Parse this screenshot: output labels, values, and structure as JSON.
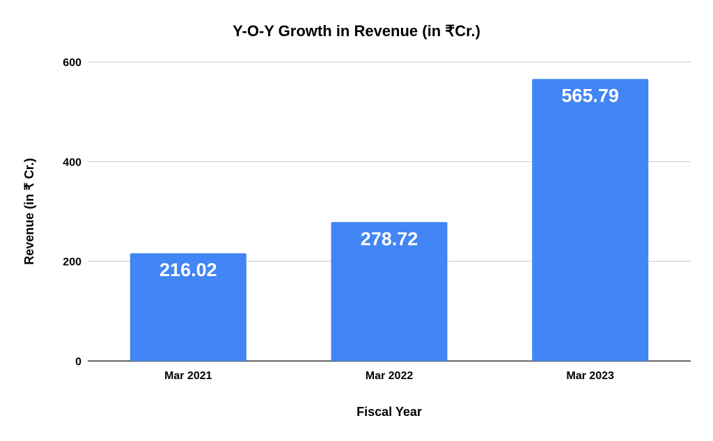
{
  "chart_data": {
    "type": "bar",
    "title": "Y-O-Y Growth in Revenue  (in ₹Cr.)",
    "xlabel": "Fiscal Year",
    "ylabel": "Revenue (in ₹ Cr.)",
    "categories": [
      "Mar 2021",
      "Mar 2022",
      "Mar 2023"
    ],
    "values": [
      216.02,
      278.72,
      565.79
    ],
    "value_labels": [
      "216.02",
      "278.72",
      "565.79"
    ],
    "ylim": [
      0,
      600
    ],
    "yticks": [
      0,
      200,
      400,
      600
    ],
    "ytick_labels": [
      "0",
      "200",
      "400",
      "600"
    ],
    "grid": true,
    "legend": "none",
    "bar_color": "#4285f4"
  }
}
